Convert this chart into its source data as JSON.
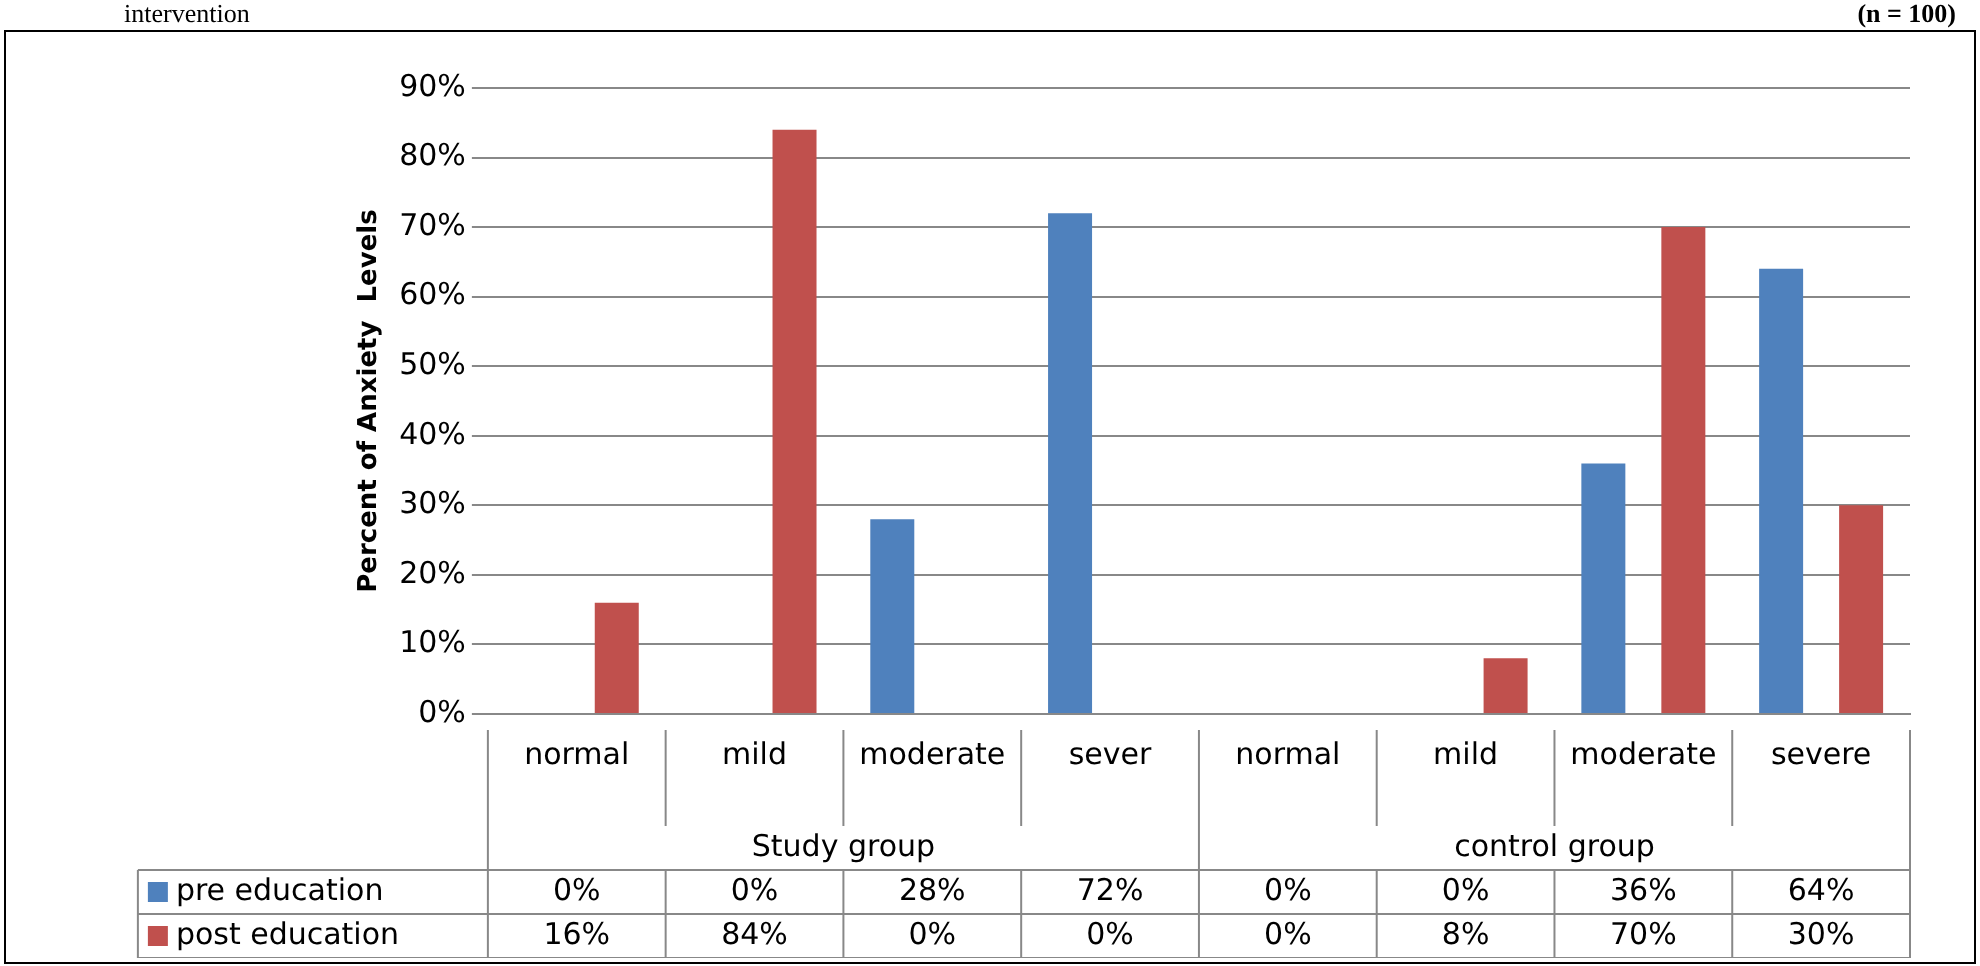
{
  "chart_data": {
    "type": "bar",
    "ylabel": "Percent of Anxiety  Levels",
    "categories": [
      "normal",
      "mild",
      "moderate",
      "sever",
      "normal",
      "mild",
      "moderate",
      "severe"
    ],
    "series": [
      {
        "name": "pre education",
        "color": "#4f81bd",
        "values": [
          0,
          0,
          28,
          72,
          0,
          0,
          36,
          64
        ],
        "value_labels": [
          "0%",
          "0%",
          "28%",
          "72%",
          "0%",
          "0%",
          "36%",
          "64%"
        ]
      },
      {
        "name": "post education",
        "color": "#c0504d",
        "values": [
          16,
          84,
          0,
          0,
          0,
          8,
          70,
          30
        ],
        "value_labels": [
          "16%",
          "84%",
          "0%",
          "0%",
          "0%",
          "8%",
          "70%",
          "30%"
        ]
      }
    ],
    "ylim": [
      0,
      90
    ],
    "yticks": [
      {
        "value": 0,
        "label": "0%"
      },
      {
        "value": 10,
        "label": "10%"
      },
      {
        "value": 20,
        "label": "20%"
      },
      {
        "value": 30,
        "label": "30%"
      },
      {
        "value": 40,
        "label": "40%"
      },
      {
        "value": 50,
        "label": "50%"
      },
      {
        "value": 60,
        "label": "60%"
      },
      {
        "value": 70,
        "label": "70%"
      },
      {
        "value": 80,
        "label": "80%"
      },
      {
        "value": 90,
        "label": "90%"
      }
    ],
    "grid": "y",
    "legend": "bottom left",
    "annotations": [
      "intervention",
      "(n = 100)",
      "Study group",
      "control group"
    ]
  }
}
